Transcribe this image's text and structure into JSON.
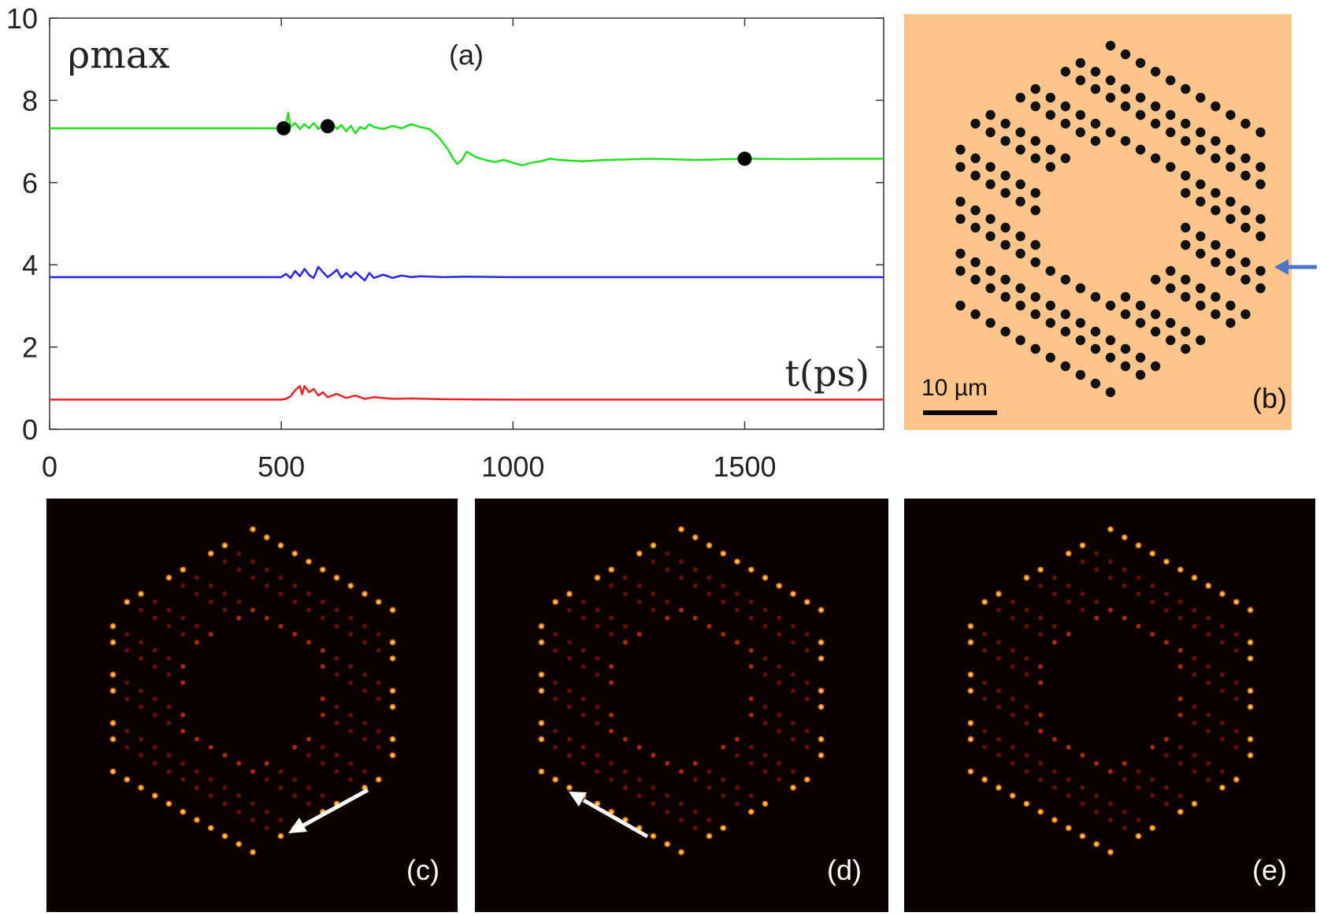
{
  "chart_data": {
    "type": "line",
    "panel_label": "(a)",
    "ylabel": "ρmax",
    "xlabel": "t(ps)",
    "xlim": [
      0,
      1800
    ],
    "ylim": [
      0,
      10
    ],
    "x_ticks": [
      0,
      500,
      1000,
      1500
    ],
    "y_ticks": [
      0,
      2,
      4,
      6,
      8,
      10
    ],
    "grid": false,
    "series": [
      {
        "name": "green",
        "color": "#22e022",
        "x": [
          0,
          500,
          510,
          515,
          520,
          530,
          540,
          550,
          560,
          570,
          580,
          590,
          600,
          610,
          620,
          630,
          640,
          650,
          660,
          670,
          680,
          690,
          700,
          720,
          740,
          760,
          780,
          800,
          820,
          840,
          860,
          870,
          880,
          890,
          900,
          920,
          940,
          960,
          980,
          1000,
          1020,
          1040,
          1060,
          1080,
          1100,
          1150,
          1200,
          1300,
          1400,
          1500,
          1600,
          1700,
          1800
        ],
        "values": [
          7.32,
          7.32,
          7.4,
          7.7,
          7.35,
          7.45,
          7.3,
          7.42,
          7.32,
          7.45,
          7.3,
          7.42,
          7.35,
          7.45,
          7.3,
          7.4,
          7.25,
          7.38,
          7.2,
          7.35,
          7.3,
          7.42,
          7.35,
          7.3,
          7.38,
          7.32,
          7.42,
          7.35,
          7.3,
          7.1,
          6.8,
          6.6,
          6.45,
          6.55,
          6.75,
          6.62,
          6.55,
          6.5,
          6.55,
          6.48,
          6.42,
          6.48,
          6.52,
          6.58,
          6.55,
          6.52,
          6.55,
          6.58,
          6.55,
          6.58,
          6.57,
          6.58,
          6.58
        ]
      },
      {
        "name": "blue",
        "color": "#2525f0",
        "x": [
          0,
          500,
          510,
          520,
          530,
          540,
          550,
          560,
          570,
          580,
          590,
          600,
          610,
          620,
          630,
          640,
          650,
          660,
          670,
          680,
          690,
          700,
          720,
          740,
          760,
          780,
          800,
          850,
          900,
          1000,
          1200,
          1400,
          1600,
          1800
        ],
        "values": [
          3.7,
          3.7,
          3.78,
          3.68,
          3.85,
          3.72,
          3.9,
          3.75,
          3.68,
          3.95,
          3.82,
          3.7,
          3.78,
          3.88,
          3.68,
          3.8,
          3.7,
          3.82,
          3.72,
          3.62,
          3.8,
          3.68,
          3.76,
          3.68,
          3.74,
          3.7,
          3.72,
          3.7,
          3.71,
          3.7,
          3.7,
          3.7,
          3.7,
          3.7
        ]
      },
      {
        "name": "red",
        "color": "#ee2222",
        "x": [
          0,
          500,
          510,
          520,
          530,
          540,
          545,
          550,
          560,
          570,
          580,
          590,
          600,
          620,
          640,
          660,
          680,
          700,
          740,
          780,
          850,
          1000,
          1200,
          1500,
          1800
        ],
        "values": [
          0.72,
          0.72,
          0.74,
          0.8,
          0.95,
          1.05,
          0.85,
          1.05,
          0.9,
          0.98,
          0.82,
          0.9,
          0.78,
          0.86,
          0.76,
          0.82,
          0.74,
          0.78,
          0.74,
          0.75,
          0.73,
          0.72,
          0.72,
          0.72,
          0.72
        ]
      }
    ],
    "markers": [
      {
        "x": 505,
        "y": 7.32
      },
      {
        "x": 600,
        "y": 7.37
      },
      {
        "x": 1500,
        "y": 6.58
      }
    ]
  },
  "panels": {
    "b": {
      "label": "(b)",
      "scalebar": "10 µm",
      "background": "#fdc58a",
      "dot_color": "#111111",
      "arrow_color": "#4a76c8"
    },
    "c": {
      "label": "(c)",
      "arrow_color": "#ffffff"
    },
    "d": {
      "label": "(d)",
      "arrow_color": "#ffffff"
    },
    "e": {
      "label": "(e)"
    }
  }
}
